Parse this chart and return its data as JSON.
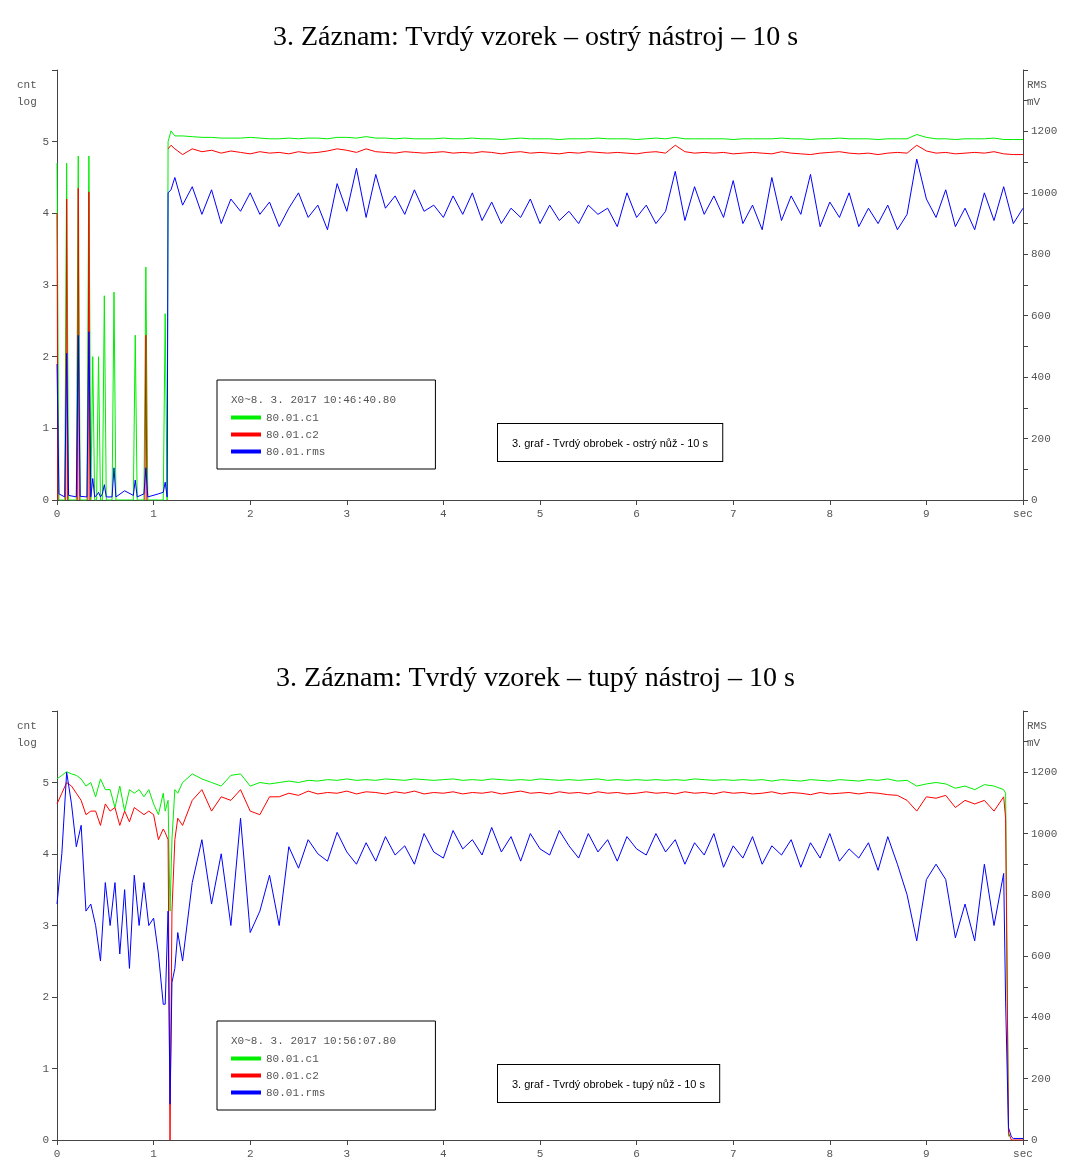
{
  "chart_data": [
    {
      "type": "line",
      "title": "3. Záznam: Tvrdý vzorek – ostrý nástroj – 10 s",
      "ylabel": "cnt\nlog",
      "y2label": "RMS\nmV",
      "legend_title": "X0~8. 3. 2017 10:46:40.80",
      "legend": "bottom left",
      "annotations": [
        "3. graf - Tvrdý obrobek - ostrý nůž - 10 s"
      ],
      "xlim": [
        0,
        10
      ],
      "xticks": [
        0,
        1,
        2,
        3,
        4,
        5,
        6,
        7,
        8,
        9,
        {
          "value": 10,
          "label": "sec"
        }
      ],
      "ylim": [
        0,
        6
      ],
      "yticks": [
        0,
        1,
        2,
        3,
        4,
        5,
        {
          "value": 6,
          "label": null
        }
      ],
      "y2lim": [
        0,
        1400
      ],
      "y2ticks": [
        0,
        {
          "value": 100,
          "label": null
        },
        200,
        {
          "value": 300,
          "label": null
        },
        400,
        {
          "value": 500,
          "label": null
        },
        600,
        {
          "value": 700,
          "label": null
        },
        800,
        {
          "value": 900,
          "label": null
        },
        1000,
        {
          "value": 1100,
          "label": null
        },
        1200,
        {
          "value": 1300,
          "label": null
        },
        {
          "value": 1400,
          "label": null
        }
      ],
      "x": [
        0,
        0.02,
        0.08,
        0.1,
        0.12,
        0.2,
        0.22,
        0.24,
        0.31,
        0.33,
        0.35,
        0.37,
        0.39,
        0.41,
        0.43,
        0.45,
        0.47,
        0.49,
        0.51,
        0.57,
        0.59,
        0.61,
        0.7,
        0.79,
        0.81,
        0.83,
        0.9,
        0.92,
        0.94,
        1.05,
        1.1,
        1.12,
        1.14,
        1.15,
        1.18,
        1.22,
        1.3,
        1.4,
        1.5,
        1.6,
        1.7,
        1.8,
        1.9,
        2.0,
        2.1,
        2.2,
        2.3,
        2.4,
        2.5,
        2.6,
        2.7,
        2.8,
        2.9,
        3.0,
        3.1,
        3.2,
        3.3,
        3.4,
        3.5,
        3.6,
        3.7,
        3.8,
        3.9,
        4.0,
        4.1,
        4.2,
        4.3,
        4.4,
        4.5,
        4.6,
        4.7,
        4.8,
        4.9,
        5.0,
        5.1,
        5.2,
        5.3,
        5.4,
        5.5,
        5.6,
        5.7,
        5.8,
        5.9,
        6.0,
        6.1,
        6.2,
        6.3,
        6.4,
        6.5,
        6.6,
        6.7,
        6.8,
        6.9,
        7.0,
        7.1,
        7.2,
        7.3,
        7.4,
        7.5,
        7.6,
        7.7,
        7.8,
        7.9,
        8.0,
        8.1,
        8.2,
        8.3,
        8.4,
        8.5,
        8.6,
        8.7,
        8.8,
        8.9,
        9.0,
        9.1,
        9.2,
        9.3,
        9.4,
        9.5,
        9.6,
        9.7,
        9.8,
        9.9,
        10.0
      ],
      "series": [
        {
          "name": "80.01.c1",
          "color": "#00ee00",
          "values": [
            4.7,
            0,
            0,
            4.7,
            0,
            0,
            4.8,
            0,
            0,
            4.8,
            0,
            2.0,
            0,
            0,
            2.0,
            0,
            0,
            2.85,
            0,
            0,
            2.9,
            0,
            0,
            0,
            2.3,
            0,
            0,
            3.25,
            0,
            0,
            0,
            2.6,
            0,
            5.0,
            5.15,
            5.08,
            5.08,
            5.07,
            5.06,
            5.06,
            5.05,
            5.05,
            5.05,
            5.06,
            5.05,
            5.04,
            5.04,
            5.05,
            5.04,
            5.05,
            5.05,
            5.04,
            5.06,
            5.06,
            5.05,
            5.07,
            5.05,
            5.05,
            5.04,
            5.05,
            5.04,
            5.04,
            5.04,
            5.05,
            5.04,
            5.04,
            5.05,
            5.04,
            5.04,
            5.03,
            5.04,
            5.05,
            5.04,
            5.04,
            5.04,
            5.03,
            5.04,
            5.04,
            5.04,
            5.05,
            5.04,
            5.04,
            5.04,
            5.03,
            5.04,
            5.05,
            5.04,
            5.06,
            5.04,
            5.04,
            5.04,
            5.04,
            5.04,
            5.03,
            5.04,
            5.04,
            5.04,
            5.04,
            5.05,
            5.04,
            5.04,
            5.03,
            5.04,
            5.04,
            5.05,
            5.04,
            5.04,
            5.04,
            5.03,
            5.04,
            5.04,
            5.04,
            5.1,
            5.06,
            5.04,
            5.04,
            5.03,
            5.04,
            5.04,
            5.04,
            5.05,
            5.03,
            5.03,
            5.03
          ]
        },
        {
          "name": "80.01.c2",
          "color": "#ff0000",
          "x": [
            0,
            0.01,
            0.05,
            0.09,
            0.1,
            0.11,
            0.16,
            0.21,
            0.22,
            0.23,
            0.28,
            0.32,
            0.33,
            0.34,
            0.6,
            0.91,
            0.92,
            0.93,
            1.0,
            1.15,
            1.18,
            1.22,
            1.3,
            1.4,
            1.5,
            1.6,
            1.7,
            1.8,
            1.9,
            2.0,
            2.1,
            2.2,
            2.3,
            2.4,
            2.5,
            2.6,
            2.7,
            2.8,
            2.9,
            3.0,
            3.1,
            3.2,
            3.3,
            3.4,
            3.5,
            3.6,
            3.7,
            3.8,
            3.9,
            4.0,
            4.1,
            4.2,
            4.3,
            4.4,
            4.5,
            4.6,
            4.7,
            4.8,
            4.9,
            5.0,
            5.1,
            5.2,
            5.3,
            5.4,
            5.5,
            5.6,
            5.7,
            5.8,
            5.9,
            6.0,
            6.1,
            6.2,
            6.3,
            6.4,
            6.5,
            6.6,
            6.7,
            6.8,
            6.9,
            7.0,
            7.1,
            7.2,
            7.3,
            7.4,
            7.5,
            7.6,
            7.7,
            7.8,
            7.9,
            8.0,
            8.1,
            8.2,
            8.3,
            8.4,
            8.5,
            8.6,
            8.7,
            8.8,
            8.9,
            9.0,
            9.1,
            9.2,
            9.3,
            9.4,
            9.5,
            9.6,
            9.7,
            9.8,
            9.9,
            10.0
          ],
          "values": [
            4.0,
            0,
            null,
            0,
            4.2,
            0,
            null,
            0,
            4.35,
            0,
            null,
            0,
            4.3,
            0,
            null,
            0,
            2.3,
            0,
            null,
            4.9,
            4.95,
            4.9,
            4.82,
            4.9,
            4.86,
            4.88,
            4.84,
            4.87,
            4.85,
            4.83,
            4.86,
            4.84,
            4.85,
            4.83,
            4.86,
            4.84,
            4.85,
            4.87,
            4.9,
            4.88,
            4.85,
            4.9,
            4.86,
            4.85,
            4.84,
            4.86,
            4.85,
            4.84,
            4.85,
            4.86,
            4.84,
            4.85,
            4.84,
            4.86,
            4.85,
            4.83,
            4.85,
            4.86,
            4.84,
            4.85,
            4.84,
            4.83,
            4.85,
            4.84,
            4.86,
            4.85,
            4.84,
            4.85,
            4.84,
            4.83,
            4.85,
            4.86,
            4.84,
            4.95,
            4.86,
            4.84,
            4.85,
            4.84,
            4.85,
            4.83,
            4.84,
            4.85,
            4.84,
            4.83,
            4.86,
            4.84,
            4.83,
            4.82,
            4.84,
            4.85,
            4.86,
            4.84,
            4.83,
            4.84,
            4.82,
            4.84,
            4.85,
            4.84,
            4.95,
            4.87,
            4.84,
            4.85,
            4.83,
            4.84,
            4.85,
            4.84,
            4.86,
            4.83,
            4.82,
            4.82
          ]
        },
        {
          "name": "80.01.rms",
          "color": "#0000ff",
          "axis": "y2",
          "values": [
            443,
            20,
            10,
            478,
            15,
            10,
            536,
            12,
            10,
            548,
            10,
            70,
            10,
            15,
            25,
            10,
            20,
            50,
            10,
            10,
            105,
            10,
            30,
            15,
            65,
            10,
            20,
            105,
            10,
            20,
            25,
            58,
            10,
            1000,
            1010,
            1050,
            960,
            1020,
            930,
            1010,
            900,
            980,
            940,
            1000,
            930,
            970,
            890,
            950,
            1000,
            920,
            960,
            880,
            1030,
            940,
            1080,
            920,
            1060,
            950,
            990,
            930,
            1010,
            940,
            960,
            920,
            990,
            930,
            1000,
            910,
            970,
            900,
            950,
            920,
            980,
            900,
            960,
            910,
            940,
            900,
            960,
            930,
            950,
            890,
            1000,
            920,
            960,
            900,
            940,
            1070,
            910,
            1020,
            930,
            990,
            920,
            1040,
            900,
            960,
            880,
            1050,
            910,
            990,
            930,
            1060,
            890,
            970,
            920,
            1000,
            890,
            950,
            900,
            960,
            880,
            930,
            1110,
            980,
            920,
            1010,
            890,
            950,
            880,
            1000,
            910,
            1020,
            900,
            950
          ]
        }
      ]
    },
    {
      "type": "line",
      "title": "3. Záznam: Tvrdý vzorek – tupý nástroj – 10 s",
      "ylabel": "cnt\nlog",
      "y2label": "RMS\nmV",
      "legend_title": "X0~8. 3. 2017 10:56:07.80",
      "legend": "bottom left",
      "annotations": [
        "3. graf - Tvrdý obrobek - tupý nůž - 10 s"
      ],
      "xlim": [
        0,
        10
      ],
      "xticks": [
        0,
        1,
        2,
        3,
        4,
        5,
        6,
        7,
        8,
        9,
        {
          "value": 10,
          "label": "sec"
        }
      ],
      "ylim": [
        0,
        6
      ],
      "yticks": [
        0,
        1,
        2,
        3,
        4,
        5,
        {
          "value": 6,
          "label": null
        }
      ],
      "y2lim": [
        0,
        1400
      ],
      "y2ticks": [
        0,
        {
          "value": 100,
          "label": null
        },
        200,
        {
          "value": 300,
          "label": null
        },
        400,
        {
          "value": 500,
          "label": null
        },
        600,
        {
          "value": 700,
          "label": null
        },
        800,
        {
          "value": 900,
          "label": null
        },
        1000,
        {
          "value": 1100,
          "label": null
        },
        1200,
        {
          "value": 1300,
          "label": null
        },
        {
          "value": 1400,
          "label": null
        }
      ],
      "x": [
        0,
        0.05,
        0.1,
        0.15,
        0.2,
        0.25,
        0.3,
        0.35,
        0.4,
        0.45,
        0.5,
        0.55,
        0.6,
        0.65,
        0.7,
        0.75,
        0.8,
        0.85,
        0.9,
        0.95,
        1.0,
        1.05,
        1.1,
        1.12,
        1.15,
        1.17,
        1.19,
        1.22,
        1.25,
        1.3,
        1.4,
        1.5,
        1.6,
        1.7,
        1.8,
        1.9,
        2.0,
        2.1,
        2.2,
        2.3,
        2.4,
        2.5,
        2.6,
        2.7,
        2.8,
        2.9,
        3.0,
        3.1,
        3.2,
        3.3,
        3.4,
        3.5,
        3.6,
        3.7,
        3.8,
        3.9,
        4.0,
        4.1,
        4.2,
        4.3,
        4.4,
        4.5,
        4.6,
        4.7,
        4.8,
        4.9,
        5.0,
        5.1,
        5.2,
        5.3,
        5.4,
        5.5,
        5.6,
        5.7,
        5.8,
        5.9,
        6.0,
        6.1,
        6.2,
        6.3,
        6.4,
        6.5,
        6.6,
        6.7,
        6.8,
        6.9,
        7.0,
        7.1,
        7.2,
        7.3,
        7.4,
        7.5,
        7.6,
        7.7,
        7.8,
        7.9,
        8.0,
        8.1,
        8.2,
        8.3,
        8.4,
        8.5,
        8.6,
        8.7,
        8.8,
        8.9,
        9.0,
        9.1,
        9.2,
        9.3,
        9.4,
        9.5,
        9.6,
        9.7,
        9.8,
        9.82,
        9.85,
        9.88,
        9.9,
        10.0
      ],
      "series": [
        {
          "name": "80.01.c1",
          "color": "#00ee00",
          "x": [
            0,
            0.05,
            0.1,
            0.15,
            0.2,
            0.25,
            0.3,
            0.35,
            0.4,
            0.45,
            0.5,
            0.55,
            0.6,
            0.65,
            0.7,
            0.75,
            0.8,
            0.85,
            0.9,
            0.95,
            1.0,
            1.05,
            1.1,
            1.12,
            1.15,
            1.17,
            1.19,
            1.22,
            1.25,
            1.3,
            1.4,
            1.5,
            1.6,
            1.7,
            1.8,
            1.9,
            2.0,
            2.1,
            2.2,
            2.3,
            2.4,
            2.5,
            2.6,
            2.7,
            2.8,
            2.9,
            3.0,
            3.1,
            3.2,
            3.3,
            3.4,
            3.5,
            3.6,
            3.7,
            3.8,
            3.9,
            4.0,
            4.1,
            4.2,
            4.3,
            4.4,
            4.5,
            4.6,
            4.7,
            4.8,
            4.9,
            5.0,
            5.1,
            5.2,
            5.3,
            5.4,
            5.5,
            5.6,
            5.7,
            5.8,
            5.9,
            6.0,
            6.1,
            6.2,
            6.3,
            6.4,
            6.5,
            6.6,
            6.7,
            6.8,
            6.9,
            7.0,
            7.1,
            7.2,
            7.3,
            7.4,
            7.5,
            7.6,
            7.7,
            7.8,
            7.9,
            8.0,
            8.1,
            8.2,
            8.3,
            8.4,
            8.5,
            8.6,
            8.7,
            8.8,
            8.9,
            9.0,
            9.1,
            9.2,
            9.3,
            9.4,
            9.5,
            9.6,
            9.7,
            9.8,
            9.82,
            9.85
          ],
          "values": [
            5.05,
            5.1,
            5.15,
            5.12,
            5.1,
            5.05,
            4.95,
            5.0,
            4.8,
            5.05,
            4.9,
            4.9,
            4.65,
            4.95,
            4.6,
            4.9,
            4.85,
            4.9,
            4.8,
            4.9,
            4.7,
            4.55,
            4.85,
            4.6,
            4.75,
            3.2,
            4.2,
            4.9,
            4.85,
            5.0,
            5.12,
            5.05,
            5.0,
            4.95,
            5.1,
            5.12,
            4.95,
            5.0,
            4.98,
            5.0,
            5.02,
            5.0,
            5.03,
            5.02,
            5.04,
            5.03,
            5.05,
            5.03,
            5.04,
            5.03,
            5.05,
            5.04,
            5.03,
            5.05,
            5.04,
            5.03,
            5.04,
            5.05,
            5.03,
            5.04,
            5.03,
            5.05,
            5.04,
            5.03,
            5.04,
            5.03,
            5.05,
            5.04,
            5.03,
            5.04,
            5.03,
            5.04,
            5.05,
            5.03,
            5.04,
            5.03,
            5.04,
            5.03,
            5.04,
            5.03,
            5.04,
            5.03,
            5.05,
            5.04,
            5.03,
            5.04,
            5.03,
            5.04,
            5.03,
            5.04,
            5.02,
            5.04,
            5.03,
            5.02,
            5.04,
            5.03,
            5.02,
            5.04,
            5.03,
            5.02,
            5.04,
            5.03,
            5.05,
            5.02,
            5.03,
            4.95,
            4.98,
            5.0,
            4.98,
            4.92,
            4.95,
            4.9,
            4.97,
            4.95,
            4.9,
            4.85,
            0.05
          ]
        },
        {
          "name": "80.01.c2",
          "color": "#ff0000",
          "values": [
            4.7,
            4.85,
            5.0,
            4.95,
            4.85,
            4.75,
            4.55,
            4.6,
            4.6,
            4.4,
            4.7,
            4.6,
            4.65,
            4.4,
            4.6,
            4.45,
            4.65,
            4.6,
            4.55,
            4.6,
            4.55,
            4.2,
            4.35,
            4.3,
            4.2,
            0,
            3.2,
            4.2,
            4.5,
            4.4,
            4.75,
            4.9,
            4.6,
            4.8,
            4.75,
            4.9,
            4.6,
            4.55,
            4.8,
            4.8,
            4.85,
            4.82,
            4.88,
            4.84,
            4.86,
            4.85,
            4.88,
            4.84,
            4.87,
            4.86,
            4.84,
            4.87,
            4.85,
            4.88,
            4.84,
            4.86,
            4.85,
            4.87,
            4.84,
            4.86,
            4.85,
            4.87,
            4.84,
            4.86,
            4.88,
            4.85,
            4.86,
            4.84,
            4.87,
            4.85,
            4.86,
            4.84,
            4.87,
            4.85,
            4.86,
            4.84,
            4.85,
            4.87,
            4.85,
            4.86,
            4.84,
            4.87,
            4.85,
            4.86,
            4.84,
            4.87,
            4.85,
            4.86,
            4.84,
            4.85,
            4.87,
            4.84,
            4.86,
            4.85,
            4.83,
            4.86,
            4.84,
            4.85,
            4.86,
            4.84,
            4.86,
            4.85,
            4.83,
            4.82,
            4.75,
            4.6,
            4.8,
            4.78,
            4.82,
            4.65,
            4.75,
            4.7,
            4.75,
            4.6,
            4.8,
            4.5,
            0.1,
            0,
            0,
            0
          ]
        },
        {
          "name": "80.01.rms",
          "color": "#0000ff",
          "axis": "y2",
          "values": [
            770,
            934,
            1200,
            1097,
            957,
            1027,
            747,
            770,
            700,
            584,
            840,
            700,
            840,
            607,
            817,
            560,
            864,
            700,
            840,
            700,
            724,
            607,
            443,
            443,
            747,
            117,
            514,
            560,
            677,
            584,
            840,
            980,
            770,
            934,
            700,
            1050,
            677,
            747,
            864,
            700,
            957,
            887,
            980,
            934,
            910,
            1004,
            940,
            900,
            970,
            910,
            990,
            930,
            960,
            900,
            1000,
            940,
            920,
            1010,
            950,
            980,
            930,
            1020,
            940,
            990,
            910,
            1000,
            950,
            930,
            1010,
            960,
            920,
            1000,
            940,
            980,
            910,
            990,
            950,
            930,
            1000,
            940,
            980,
            900,
            970,
            930,
            1000,
            890,
            960,
            920,
            990,
            900,
            960,
            930,
            980,
            890,
            970,
            920,
            1000,
            910,
            950,
            920,
            970,
            880,
            990,
            900,
            800,
            650,
            850,
            900,
            850,
            660,
            770,
            650,
            900,
            700,
            870,
            450,
            40,
            10,
            5,
            5
          ]
        }
      ]
    }
  ]
}
